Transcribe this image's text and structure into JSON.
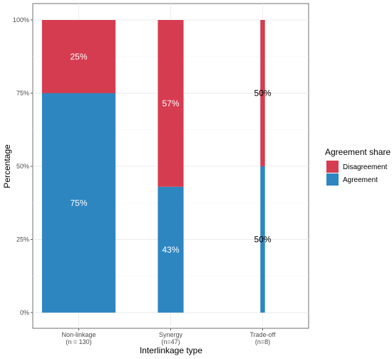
{
  "chart_data": {
    "type": "bar",
    "stacked": true,
    "title": "",
    "xlabel": "Interlinkage type",
    "ylabel": "Percentage",
    "categories": [
      [
        "Non-linkage",
        "(n = 130)"
      ],
      [
        "Synergy",
        "(n=47)"
      ],
      [
        "Trade-off",
        "(n=8)"
      ]
    ],
    "series": [
      {
        "name": "Agreement",
        "values": [
          75,
          43,
          50
        ],
        "labels": [
          "75%",
          "43%",
          "50%"
        ],
        "color": "#2E86C1",
        "label_color": [
          "#ffffff",
          "#ffffff",
          "#000000"
        ]
      },
      {
        "name": "Disagreement",
        "values": [
          25,
          57,
          50
        ],
        "labels": [
          "25%",
          "57%",
          "50%"
        ],
        "color": "#D63C50",
        "label_color": [
          "#ffffff",
          "#ffffff",
          "#000000"
        ]
      }
    ],
    "bar_width_relative": [
      0.8,
      0.28,
      0.05
    ],
    "ylim": [
      0,
      100
    ],
    "yticks": [
      0,
      25,
      50,
      75,
      100
    ],
    "ytick_labels": [
      "0%",
      "25%",
      "50%",
      "75%",
      "100%"
    ],
    "grid": true,
    "legend": {
      "title": "Agreement share",
      "position": "right",
      "entries": [
        {
          "label": "Disagreement",
          "color": "#D63C50"
        },
        {
          "label": "Agreement",
          "color": "#2E86C1"
        }
      ]
    }
  }
}
